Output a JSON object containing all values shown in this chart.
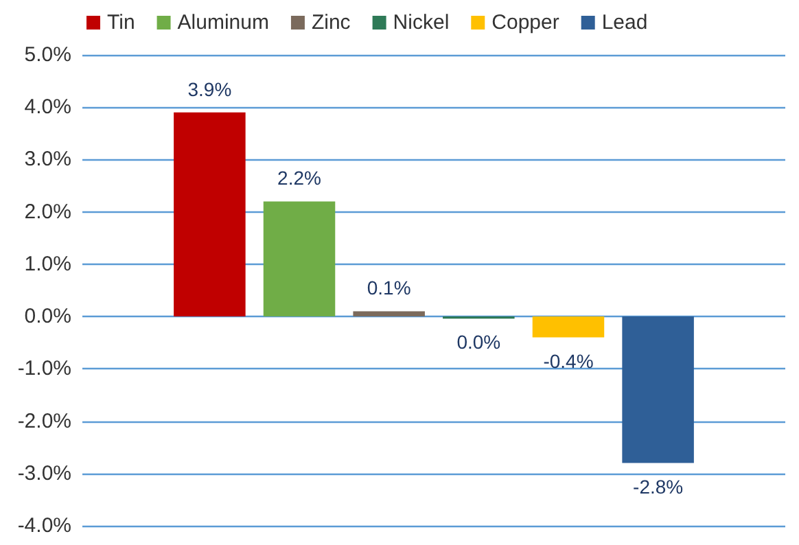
{
  "chart_data": {
    "type": "bar",
    "categories": [
      null
    ],
    "series": [
      {
        "name": "Tin",
        "color": "#c00000",
        "values": [
          3.9
        ],
        "value_labels": [
          "3.9%"
        ]
      },
      {
        "name": "Aluminum",
        "color": "#70ad47",
        "values": [
          2.2
        ],
        "value_labels": [
          "2.2%"
        ]
      },
      {
        "name": "Zinc",
        "color": "#7b6a5c",
        "values": [
          0.1
        ],
        "value_labels": [
          "0.1%"
        ]
      },
      {
        "name": "Nickel",
        "color": "#2e7a57",
        "values": [
          -0.04
        ],
        "value_labels": [
          "0.0%"
        ]
      },
      {
        "name": "Copper",
        "color": "#ffc000",
        "values": [
          -0.4
        ],
        "value_labels": [
          "-0.4%"
        ]
      },
      {
        "name": "Lead",
        "color": "#2f5f97",
        "values": [
          -2.8
        ],
        "value_labels": [
          "-2.8%"
        ]
      }
    ],
    "ylim": [
      -4,
      5
    ],
    "yticks": [
      {
        "value": -4,
        "label": "-4.0%"
      },
      {
        "value": -3,
        "label": "-3.0%"
      },
      {
        "value": -2,
        "label": "-2.0%"
      },
      {
        "value": -1,
        "label": "-1.0%"
      },
      {
        "value": 0,
        "label": "0.0%"
      },
      {
        "value": 1,
        "label": "1.0%"
      },
      {
        "value": 2,
        "label": "2.0%"
      },
      {
        "value": 3,
        "label": "3.0%"
      },
      {
        "value": 4,
        "label": "4.0%"
      },
      {
        "value": 5,
        "label": "5.0%"
      }
    ],
    "grid": "y",
    "legend": "top left"
  }
}
